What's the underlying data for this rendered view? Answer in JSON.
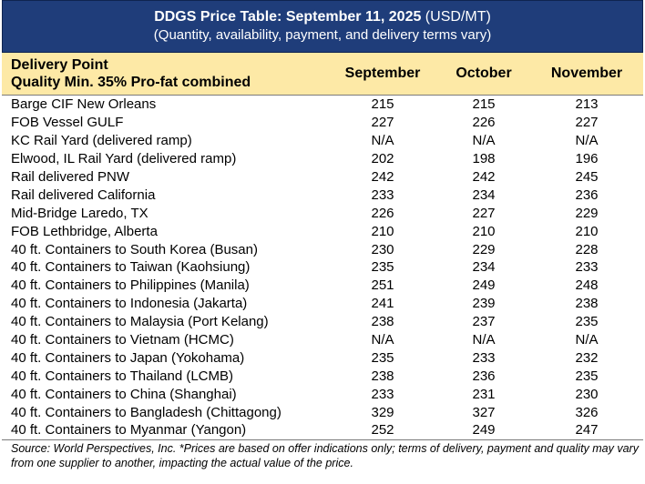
{
  "title": {
    "main": "DDGS Price Table: September 11, 2025",
    "unit": " (USD/MT)",
    "subtitle": "(Quantity, availability, payment, and delivery terms vary)"
  },
  "header": {
    "col0_line1": "Delivery Point",
    "col0_line2": "Quality Min. 35% Pro-fat combined",
    "col1": "September",
    "col2": "October",
    "col3": "November"
  },
  "rows": [
    {
      "name": "Barge CIF New Orleans",
      "sep": "215",
      "oct": "215",
      "nov": "213"
    },
    {
      "name": "FOB Vessel GULF",
      "sep": "227",
      "oct": "226",
      "nov": "227"
    },
    {
      "name": "KC Rail Yard (delivered ramp)",
      "sep": "N/A",
      "oct": "N/A",
      "nov": "N/A"
    },
    {
      "name": "Elwood, IL Rail Yard (delivered ramp)",
      "sep": "202",
      "oct": "198",
      "nov": "196"
    },
    {
      "name": "Rail delivered PNW",
      "sep": "242",
      "oct": "242",
      "nov": "245"
    },
    {
      "name": "Rail delivered California",
      "sep": "233",
      "oct": "234",
      "nov": "236"
    },
    {
      "name": "Mid-Bridge Laredo, TX",
      "sep": "226",
      "oct": "227",
      "nov": "229"
    },
    {
      "name": "FOB Lethbridge, Alberta",
      "sep": "210",
      "oct": "210",
      "nov": "210"
    },
    {
      "name": "40 ft. Containers to South Korea (Busan)",
      "sep": "230",
      "oct": "229",
      "nov": "228"
    },
    {
      "name": "40 ft. Containers to Taiwan (Kaohsiung)",
      "sep": "235",
      "oct": "234",
      "nov": "233"
    },
    {
      "name": "40 ft. Containers to Philippines (Manila)",
      "sep": "251",
      "oct": "249",
      "nov": "248"
    },
    {
      "name": "40 ft. Containers to Indonesia (Jakarta)",
      "sep": "241",
      "oct": "239",
      "nov": "238"
    },
    {
      "name": "40 ft. Containers to Malaysia (Port Kelang)",
      "sep": "238",
      "oct": "237",
      "nov": "235"
    },
    {
      "name": "40 ft. Containers to Vietnam (HCMC)",
      "sep": "N/A",
      "oct": "N/A",
      "nov": "N/A"
    },
    {
      "name": "40 ft. Containers to Japan (Yokohama)",
      "sep": "235",
      "oct": "233",
      "nov": "232"
    },
    {
      "name": "40 ft. Containers to Thailand (LCMB)",
      "sep": "238",
      "oct": "236",
      "nov": "235"
    },
    {
      "name": "40 ft. Containers to China (Shanghai)",
      "sep": "233",
      "oct": "231",
      "nov": "230"
    },
    {
      "name": "40 ft. Containers to Bangladesh (Chittagong)",
      "sep": "329",
      "oct": "327",
      "nov": "326"
    },
    {
      "name": "40 ft. Containers to Myanmar (Yangon)",
      "sep": "252",
      "oct": "249",
      "nov": "247"
    }
  ],
  "source": "Source: World Perspectives, Inc. *Prices are based on offer indications only; terms of delivery, payment and quality may vary from one supplier to another, impacting the actual value of the price.",
  "colors": {
    "title_bg": "#1f3d7a",
    "header_bg": "#fde9a6"
  }
}
